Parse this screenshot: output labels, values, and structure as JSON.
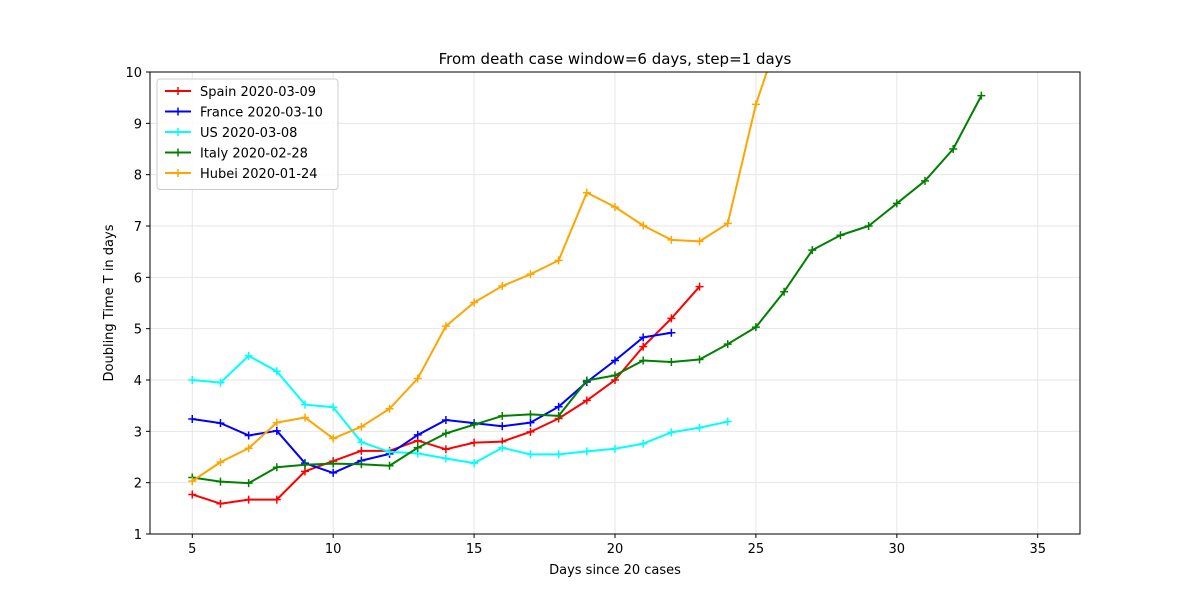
{
  "chart_data": {
    "type": "line",
    "title": "From death case window=6 days, step=1 days",
    "xlabel": "Days since 20 cases",
    "ylabel": "Doubling Time T in days",
    "xlim": [
      3.5,
      36.5
    ],
    "ylim": [
      1,
      10
    ],
    "xticks": [
      5,
      10,
      15,
      20,
      25,
      30,
      35
    ],
    "yticks": [
      1,
      2,
      3,
      4,
      5,
      6,
      7,
      8,
      9,
      10
    ],
    "grid": true,
    "legend": "top-left",
    "marker": "plus",
    "series": [
      {
        "name": "Spain 2020-03-09",
        "color": "#ff0000",
        "x": [
          5,
          6,
          7,
          8,
          9,
          10,
          11,
          12,
          13,
          14,
          15,
          16,
          17,
          18,
          19,
          20,
          21,
          22,
          23
        ],
        "y": [
          1.77,
          1.59,
          1.67,
          1.67,
          2.22,
          2.42,
          2.62,
          2.62,
          2.82,
          2.65,
          2.78,
          2.8,
          2.99,
          3.25,
          3.6,
          4.0,
          4.65,
          5.2,
          5.82
        ]
      },
      {
        "name": "France 2020-03-10",
        "color": "#0000ff",
        "x": [
          5,
          6,
          7,
          8,
          9,
          10,
          11,
          12,
          13,
          14,
          15,
          16,
          17,
          18,
          19,
          20,
          21,
          22
        ],
        "y": [
          3.24,
          3.16,
          2.92,
          3.01,
          2.38,
          2.19,
          2.43,
          2.56,
          2.93,
          3.22,
          3.16,
          3.1,
          3.17,
          3.48,
          3.96,
          4.38,
          4.83,
          4.92
        ]
      },
      {
        "name": "US 2020-03-08",
        "color": "#00ffff",
        "x": [
          5,
          6,
          7,
          8,
          9,
          10,
          11,
          12,
          13,
          14,
          15,
          16,
          17,
          18,
          19,
          20,
          21,
          22,
          23,
          24
        ],
        "y": [
          4.0,
          3.95,
          4.47,
          4.17,
          3.52,
          3.47,
          2.79,
          2.6,
          2.57,
          2.47,
          2.38,
          2.68,
          2.55,
          2.55,
          2.61,
          2.66,
          2.76,
          2.98,
          3.07,
          3.19
        ]
      },
      {
        "name": "Italy 2020-02-28",
        "color": "#008000",
        "x": [
          5,
          6,
          7,
          8,
          9,
          10,
          11,
          12,
          13,
          14,
          15,
          16,
          17,
          18,
          19,
          20,
          21,
          22,
          23,
          24,
          25,
          26,
          27,
          28,
          29,
          30,
          31,
          32,
          33
        ],
        "y": [
          2.1,
          2.02,
          1.99,
          2.3,
          2.35,
          2.37,
          2.36,
          2.33,
          2.68,
          2.96,
          3.13,
          3.3,
          3.33,
          3.3,
          3.99,
          4.09,
          4.38,
          4.35,
          4.4,
          4.7,
          5.03,
          5.72,
          6.53,
          6.82,
          7.0,
          7.44,
          7.88,
          8.5,
          9.54
        ]
      },
      {
        "name": "Hubei 2020-01-24",
        "color": "#ffa500",
        "x": [
          5,
          6,
          7,
          8,
          9,
          10,
          11,
          12,
          13,
          14,
          15,
          16,
          17,
          18,
          19,
          20,
          21,
          22,
          23,
          24,
          25,
          26
        ],
        "y": [
          2.03,
          2.4,
          2.67,
          3.17,
          3.27,
          2.86,
          3.09,
          3.44,
          4.03,
          5.05,
          5.51,
          5.83,
          6.06,
          6.33,
          7.65,
          7.37,
          7.01,
          6.73,
          6.7,
          7.05,
          9.37,
          11.0
        ]
      }
    ]
  }
}
